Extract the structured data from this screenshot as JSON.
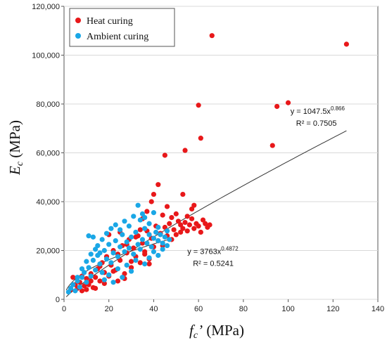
{
  "chart_data": {
    "type": "scatter",
    "xlabel": {
      "main": "f",
      "sub": "c",
      "prime": "’",
      "unit": " (MPa)"
    },
    "ylabel": {
      "main": "E",
      "sub": "c",
      "unit": " (MPa)"
    },
    "xlim": [
      0,
      140
    ],
    "ylim": [
      0,
      120000
    ],
    "x_ticks": [
      "0",
      "20",
      "40",
      "60",
      "80",
      "100",
      "120",
      "140"
    ],
    "y_ticks": [
      "0",
      "20,000",
      "40,000",
      "60,000",
      "80,000",
      "100,000",
      "120,000"
    ],
    "legend_position": "top-left",
    "series": [
      {
        "name": "Heat curing",
        "color": "#e8181a",
        "points": [
          [
            3,
            4000
          ],
          [
            4,
            9000
          ],
          [
            5,
            6000
          ],
          [
            6,
            4500
          ],
          [
            7,
            7000
          ],
          [
            8,
            3500
          ],
          [
            9,
            5500
          ],
          [
            10,
            8500
          ],
          [
            11,
            6000
          ],
          [
            12,
            10500
          ],
          [
            13,
            4800
          ],
          [
            14,
            9000
          ],
          [
            15,
            12500
          ],
          [
            16,
            7500
          ],
          [
            17,
            15000
          ],
          [
            18,
            11000
          ],
          [
            19,
            17500
          ],
          [
            20,
            9500
          ],
          [
            21,
            14000
          ],
          [
            22,
            20000
          ],
          [
            23,
            12000
          ],
          [
            24,
            18500
          ],
          [
            25,
            16000
          ],
          [
            26,
            22000
          ],
          [
            27,
            10500
          ],
          [
            28,
            19000
          ],
          [
            29,
            24500
          ],
          [
            30,
            13000
          ],
          [
            31,
            21000
          ],
          [
            32,
            17500
          ],
          [
            33,
            26000
          ],
          [
            34,
            15000
          ],
          [
            35,
            23000
          ],
          [
            36,
            19500
          ],
          [
            37,
            28000
          ],
          [
            38,
            16500
          ],
          [
            39,
            25000
          ],
          [
            40,
            21500
          ],
          [
            41,
            30000
          ],
          [
            42,
            24000
          ],
          [
            43,
            27000
          ],
          [
            44,
            22000
          ],
          [
            45,
            29500
          ],
          [
            46,
            26000
          ],
          [
            47,
            31000
          ],
          [
            48,
            24500
          ],
          [
            49,
            28500
          ],
          [
            50,
            26500
          ],
          [
            51,
            32000
          ],
          [
            52,
            27500
          ],
          [
            53,
            29000
          ],
          [
            54,
            31500
          ],
          [
            55,
            28000
          ],
          [
            56,
            30500
          ],
          [
            57,
            33000
          ],
          [
            58,
            29000
          ],
          [
            59,
            31000
          ],
          [
            60,
            30000
          ],
          [
            61,
            27500
          ],
          [
            62,
            32500
          ],
          [
            63,
            31000
          ],
          [
            64,
            29500
          ],
          [
            65,
            30500
          ],
          [
            35,
            33000
          ],
          [
            37,
            36000
          ],
          [
            39,
            40000
          ],
          [
            40,
            43000
          ],
          [
            42,
            47000
          ],
          [
            46,
            38000
          ],
          [
            50,
            35000
          ],
          [
            53,
            43000
          ],
          [
            55,
            34000
          ],
          [
            57,
            37000
          ],
          [
            58,
            38500
          ],
          [
            45,
            59000
          ],
          [
            54,
            61000
          ],
          [
            60,
            79500
          ],
          [
            61,
            66000
          ],
          [
            66,
            108000
          ],
          [
            93,
            63000
          ],
          [
            95,
            79000
          ],
          [
            100,
            80500
          ],
          [
            126,
            104500
          ],
          [
            20,
            26500
          ],
          [
            25,
            27500
          ],
          [
            28,
            22500
          ],
          [
            32,
            25500
          ],
          [
            34,
            28500
          ],
          [
            36,
            18500
          ],
          [
            38,
            14500
          ],
          [
            30,
            15500
          ],
          [
            27,
            8500
          ],
          [
            24,
            7500
          ],
          [
            22,
            11500
          ],
          [
            18,
            6500
          ],
          [
            16,
            13500
          ],
          [
            14,
            4500
          ],
          [
            12,
            7500
          ],
          [
            10,
            4000
          ],
          [
            8,
            9500
          ],
          [
            44,
            34500
          ],
          [
            48,
            33500
          ],
          [
            52,
            30500
          ]
        ]
      },
      {
        "name": "Ambient curing",
        "color": "#1aa7e6",
        "points": [
          [
            2,
            3000
          ],
          [
            3,
            4500
          ],
          [
            4,
            6000
          ],
          [
            5,
            3500
          ],
          [
            6,
            7500
          ],
          [
            7,
            5000
          ],
          [
            8,
            9000
          ],
          [
            9,
            11000
          ],
          [
            10,
            7000
          ],
          [
            11,
            13000
          ],
          [
            12,
            9500
          ],
          [
            13,
            16000
          ],
          [
            14,
            12000
          ],
          [
            15,
            18000
          ],
          [
            16,
            14500
          ],
          [
            17,
            11000
          ],
          [
            18,
            20000
          ],
          [
            19,
            16500
          ],
          [
            20,
            22500
          ],
          [
            21,
            15000
          ],
          [
            22,
            19000
          ],
          [
            23,
            24000
          ],
          [
            24,
            17500
          ],
          [
            25,
            21500
          ],
          [
            26,
            26500
          ],
          [
            27,
            19500
          ],
          [
            28,
            23500
          ],
          [
            29,
            21000
          ],
          [
            30,
            25500
          ],
          [
            31,
            18500
          ],
          [
            32,
            27500
          ],
          [
            33,
            22500
          ],
          [
            34,
            20500
          ],
          [
            35,
            24500
          ],
          [
            36,
            29000
          ],
          [
            37,
            23000
          ],
          [
            38,
            26500
          ],
          [
            39,
            21500
          ],
          [
            40,
            25000
          ],
          [
            41,
            27500
          ],
          [
            42,
            24000
          ],
          [
            43,
            26500
          ],
          [
            44,
            23000
          ],
          [
            45,
            25500
          ],
          [
            46,
            28000
          ],
          [
            47,
            24500
          ],
          [
            11,
            26000
          ],
          [
            13,
            25500
          ],
          [
            16,
            19000
          ],
          [
            18,
            8000
          ],
          [
            20,
            10000
          ],
          [
            22,
            7000
          ],
          [
            24,
            12500
          ],
          [
            26,
            9000
          ],
          [
            28,
            14000
          ],
          [
            30,
            11500
          ],
          [
            32,
            16000
          ],
          [
            33,
            38500
          ],
          [
            34,
            32500
          ],
          [
            35,
            35000
          ],
          [
            36,
            33500
          ],
          [
            38,
            31000
          ],
          [
            40,
            35500
          ],
          [
            42,
            29500
          ],
          [
            15,
            22000
          ],
          [
            17,
            24500
          ],
          [
            19,
            27000
          ],
          [
            21,
            29000
          ],
          [
            23,
            30500
          ],
          [
            25,
            28500
          ],
          [
            27,
            32000
          ],
          [
            29,
            30000
          ],
          [
            31,
            34000
          ],
          [
            6,
            9000
          ],
          [
            8,
            12500
          ],
          [
            10,
            15500
          ],
          [
            12,
            18500
          ],
          [
            14,
            20500
          ],
          [
            36,
            14500
          ],
          [
            38,
            17000
          ],
          [
            40,
            19500
          ],
          [
            42,
            18000
          ],
          [
            44,
            20500
          ],
          [
            46,
            22000
          ]
        ]
      }
    ],
    "trendlines": [
      {
        "series": "Heat curing",
        "a": 1047.5,
        "b": 0.866,
        "x_range": [
          1,
          126
        ],
        "eq_lines": [
          "y = 1047.5x",
          "0.866",
          "R² = 0.7505"
        ],
        "label_at": [
          101,
          76000
        ]
      },
      {
        "series": "Ambient curing",
        "a": 3763,
        "b": 0.4872,
        "x_range": [
          1,
          47
        ],
        "eq_lines": [
          "y = 3763x",
          "0.4872",
          "R² = 0.5241"
        ],
        "label_at": [
          55,
          18500
        ]
      }
    ]
  }
}
